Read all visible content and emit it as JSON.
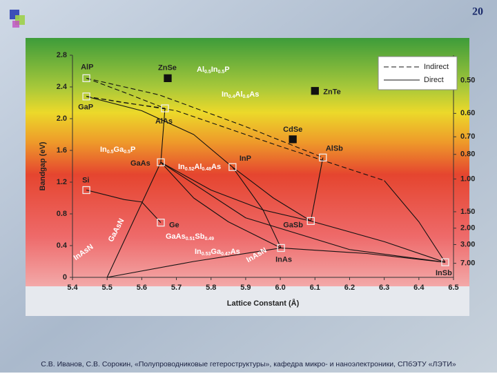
{
  "page_number": "20",
  "footer": "С.В. Иванов, С.В. Сорокин, «Полупроводниковые гетероструктуры», кафедра микро- и наноэлектроники, СПбЭТУ «ЛЭТИ»",
  "chart_data": {
    "type": "scatter",
    "x_label": "Lattice Constant (Å)",
    "y_label": "Bandgap (eV)",
    "xlim": [
      5.4,
      6.5
    ],
    "xticks": [
      5.4,
      5.5,
      5.6,
      5.7,
      5.8,
      5.9,
      {
        "value": 6,
        "label": "6.0"
      },
      6.1,
      6.2,
      6.3,
      6.4,
      6.5
    ],
    "ylim": [
      0,
      2.8
    ],
    "yticks": [
      0,
      0.4,
      0.8,
      1.2,
      1.6,
      {
        "value": 2,
        "label": "2.0"
      },
      2.4,
      2.8
    ],
    "y2ticks": [
      {
        "value": 0.5,
        "label": "0.50"
      },
      {
        "value": 0.6,
        "label": "0.60"
      },
      {
        "value": 0.7,
        "label": "0.70"
      },
      {
        "value": 0.8,
        "label": "0.80"
      },
      {
        "value": 1,
        "label": "1.00"
      },
      {
        "value": 1.5,
        "label": "1.50"
      },
      {
        "value": 2,
        "label": "2.00"
      },
      {
        "value": 3,
        "label": "3.00"
      },
      {
        "value": 7,
        "label": "7.00"
      }
    ],
    "legend": [
      {
        "label": "Indirect",
        "style": "dashed"
      },
      {
        "label": "Direct",
        "style": "solid"
      }
    ],
    "points": [
      {
        "label": "AlP",
        "x": 5.44,
        "y": 2.51,
        "marker": "open"
      },
      {
        "label": "GaP",
        "x": 5.44,
        "y": 2.28,
        "marker": "open"
      },
      {
        "label": "AlAs",
        "x": 5.667,
        "y": 2.13,
        "marker": "open"
      },
      {
        "label": "GaAs",
        "x": 5.655,
        "y": 1.45,
        "marker": "open"
      },
      {
        "label": "Si",
        "x": 5.44,
        "y": 1.1,
        "marker": "open"
      },
      {
        "label": "Ge",
        "x": 5.655,
        "y": 0.69,
        "marker": "open"
      },
      {
        "label": "InP",
        "x": 5.862,
        "y": 1.39,
        "marker": "open"
      },
      {
        "label": "AlSb",
        "x": 6.123,
        "y": 1.51,
        "marker": "open"
      },
      {
        "label": "GaSb",
        "x": 6.088,
        "y": 0.71,
        "marker": "open"
      },
      {
        "label": "InAs",
        "x": 6.002,
        "y": 0.37,
        "marker": "open"
      },
      {
        "label": "InSb",
        "x": 6.476,
        "y": 0.19,
        "marker": "open"
      },
      {
        "label": "ZnSe",
        "x": 5.675,
        "y": 2.51,
        "marker": "filled"
      },
      {
        "label": "ZnTe",
        "x": 6.1,
        "y": 2.35,
        "marker": "filled"
      },
      {
        "label": "CdSe",
        "x": 6.036,
        "y": 1.74,
        "marker": "filled"
      }
    ],
    "curves": [
      {
        "style": "dashed",
        "x": [
          5.44,
          5.55,
          5.667
        ],
        "y": [
          2.51,
          2.33,
          2.13
        ]
      },
      {
        "style": "dashed",
        "x": [
          5.44,
          5.55,
          5.667
        ],
        "y": [
          2.28,
          2.2,
          2.13
        ]
      },
      {
        "style": "dashed",
        "x": [
          5.44,
          5.65,
          5.9,
          6.123
        ],
        "y": [
          2.51,
          2.3,
          1.9,
          1.51
        ]
      },
      {
        "style": "dashed",
        "x": [
          5.44,
          5.7,
          6.0,
          6.3
        ],
        "y": [
          2.28,
          2.1,
          1.65,
          1.22
        ]
      },
      {
        "style": "solid",
        "x": [
          5.667,
          5.655
        ],
        "y": [
          2.13,
          1.45
        ]
      },
      {
        "style": "solid",
        "x": [
          5.655,
          5.75,
          5.85,
          6.002
        ],
        "y": [
          1.45,
          1.0,
          0.7,
          0.37
        ]
      },
      {
        "style": "solid",
        "x": [
          5.655,
          5.8,
          5.95,
          6.088
        ],
        "y": [
          1.45,
          1.1,
          0.85,
          0.71
        ]
      },
      {
        "style": "solid",
        "x": [
          5.44,
          5.6,
          5.75,
          5.862
        ],
        "y": [
          2.28,
          2.1,
          1.8,
          1.39
        ]
      },
      {
        "style": "solid",
        "x": [
          5.862,
          5.95,
          6.002
        ],
        "y": [
          1.39,
          0.85,
          0.37
        ]
      },
      {
        "style": "solid",
        "x": [
          5.862,
          5.98,
          6.088
        ],
        "y": [
          1.39,
          1.0,
          0.71
        ]
      },
      {
        "style": "solid",
        "x": [
          6.123,
          6.088
        ],
        "y": [
          1.51,
          0.71
        ]
      },
      {
        "style": "solid",
        "x": [
          6.3,
          6.4,
          6.476
        ],
        "y": [
          1.22,
          0.7,
          0.19
        ]
      },
      {
        "style": "solid",
        "x": [
          6.088,
          6.3,
          6.476
        ],
        "y": [
          0.71,
          0.45,
          0.19
        ]
      },
      {
        "style": "solid",
        "x": [
          6.002,
          6.25,
          6.476
        ],
        "y": [
          0.37,
          0.3,
          0.19
        ]
      },
      {
        "style": "solid",
        "x": [
          5.655,
          5.9,
          6.2,
          6.476
        ],
        "y": [
          1.45,
          0.75,
          0.35,
          0.19
        ]
      },
      {
        "style": "solid",
        "x": [
          5.655,
          5.5
        ],
        "y": [
          1.45,
          0
        ]
      },
      {
        "style": "solid",
        "x": [
          5.5,
          5.75,
          6.002
        ],
        "y": [
          0,
          0.2,
          0.37
        ]
      },
      {
        "style": "solid",
        "x": [
          5.44,
          5.55,
          5.6,
          5.655
        ],
        "y": [
          1.1,
          0.98,
          0.95,
          0.69
        ]
      }
    ],
    "annotations": [
      [
        "Al",
        "0.5",
        "In",
        "0.5",
        "P"
      ],
      [
        "In",
        "0.4",
        "Al",
        "0.6",
        "As"
      ],
      [
        "In",
        "0.5",
        "Ga",
        "0.5",
        "P"
      ],
      [
        "In",
        "0.52",
        "Al",
        "0.48",
        "As"
      ],
      [
        "GaAs",
        "0.51",
        "Sb",
        "0.49"
      ],
      [
        "In",
        "0.53",
        "Ga",
        "0.47",
        "As"
      ],
      [
        "InAsN"
      ],
      [
        "GaAsN"
      ],
      [
        "InAsN"
      ]
    ]
  }
}
